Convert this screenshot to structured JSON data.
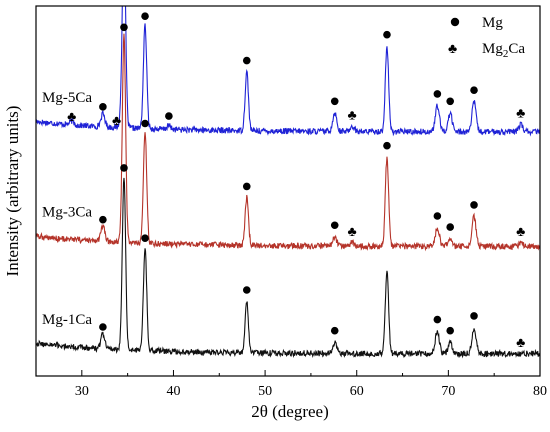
{
  "chart_data": {
    "type": "line",
    "xlabel": "2θ (degree)",
    "ylabel": "Intensity (arbitrary units)",
    "xlim": [
      25,
      80
    ],
    "x_ticks": [
      "30",
      "40",
      "50",
      "60",
      "70",
      "80"
    ],
    "legend": [
      {
        "symbol": "●",
        "label": "Mg",
        "marker": "circle"
      },
      {
        "symbol": "♣",
        "label_main": "Mg",
        "label_sub": "2",
        "label_tail": "Ca",
        "marker": "club"
      }
    ],
    "legend_position": "top-right",
    "y_ticks_shown": false,
    "series": [
      {
        "name": "Mg-5Ca",
        "color": "#1f22d6",
        "baseline": 0.66,
        "peaks": [
          [
            28.9,
            0.01
          ],
          [
            32.3,
            0.035
          ],
          [
            34.4,
            0.035
          ],
          [
            34.6,
            0.5
          ],
          [
            36.9,
            0.28
          ],
          [
            39.5,
            0.01
          ],
          [
            48.0,
            0.16
          ],
          [
            57.6,
            0.05
          ],
          [
            59.5,
            0.015
          ],
          [
            63.3,
            0.23
          ],
          [
            68.8,
            0.07
          ],
          [
            70.2,
            0.05
          ],
          [
            72.8,
            0.08
          ],
          [
            77.9,
            0.02
          ]
        ],
        "markers": [
          {
            "x": 28.9,
            "kind": "club"
          },
          {
            "x": 32.3,
            "kind": "circle"
          },
          {
            "x": 33.8,
            "kind": "club"
          },
          {
            "x": 34.6,
            "kind": "circle"
          },
          {
            "x": 36.9,
            "kind": "circle"
          },
          {
            "x": 39.5,
            "kind": "circle"
          },
          {
            "x": 48.0,
            "kind": "circle"
          },
          {
            "x": 57.6,
            "kind": "circle"
          },
          {
            "x": 59.5,
            "kind": "club"
          },
          {
            "x": 63.3,
            "kind": "circle"
          },
          {
            "x": 68.8,
            "kind": "circle"
          },
          {
            "x": 70.2,
            "kind": "circle"
          },
          {
            "x": 72.8,
            "kind": "circle"
          },
          {
            "x": 77.9,
            "kind": "club"
          }
        ]
      },
      {
        "name": "Mg-3Ca",
        "color": "#b5342a",
        "baseline": 0.35,
        "peaks": [
          [
            32.3,
            0.04
          ],
          [
            34.6,
            0.56
          ],
          [
            36.9,
            0.3
          ],
          [
            48.0,
            0.13
          ],
          [
            57.6,
            0.025
          ],
          [
            59.5,
            0.01
          ],
          [
            63.3,
            0.24
          ],
          [
            68.8,
            0.05
          ],
          [
            70.2,
            0.02
          ],
          [
            72.8,
            0.08
          ],
          [
            77.9,
            0.01
          ]
        ],
        "markers": [
          {
            "x": 32.3,
            "kind": "circle"
          },
          {
            "x": 34.6,
            "kind": "circle"
          },
          {
            "x": 36.9,
            "kind": "circle"
          },
          {
            "x": 48.0,
            "kind": "circle"
          },
          {
            "x": 57.6,
            "kind": "circle"
          },
          {
            "x": 59.5,
            "kind": "club"
          },
          {
            "x": 63.3,
            "kind": "circle"
          },
          {
            "x": 68.8,
            "kind": "circle"
          },
          {
            "x": 70.2,
            "kind": "circle"
          },
          {
            "x": 72.8,
            "kind": "circle"
          },
          {
            "x": 77.9,
            "kind": "club"
          }
        ]
      },
      {
        "name": "Mg-1Ca",
        "color": "#111111",
        "baseline": 0.06,
        "peaks": [
          [
            32.3,
            0.04
          ],
          [
            34.6,
            0.47
          ],
          [
            36.9,
            0.28
          ],
          [
            48.0,
            0.14
          ],
          [
            57.6,
            0.03
          ],
          [
            63.3,
            0.22
          ],
          [
            68.8,
            0.06
          ],
          [
            70.2,
            0.03
          ],
          [
            72.8,
            0.07
          ]
        ],
        "markers": [
          {
            "x": 32.3,
            "kind": "circle"
          },
          {
            "x": 34.6,
            "kind": "circle"
          },
          {
            "x": 36.9,
            "kind": "circle"
          },
          {
            "x": 48.0,
            "kind": "circle"
          },
          {
            "x": 57.6,
            "kind": "circle"
          },
          {
            "x": 68.8,
            "kind": "circle"
          },
          {
            "x": 70.2,
            "kind": "circle"
          },
          {
            "x": 72.8,
            "kind": "circle"
          },
          {
            "x": 77.9,
            "kind": "club"
          }
        ]
      }
    ]
  }
}
